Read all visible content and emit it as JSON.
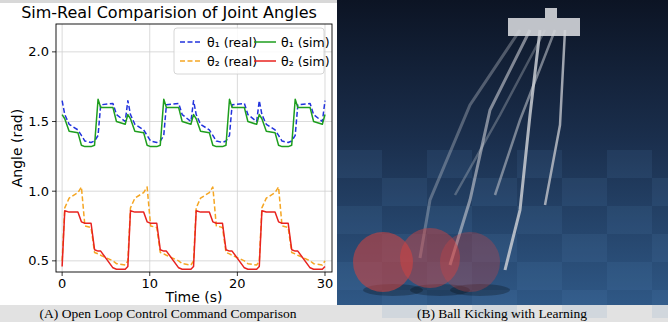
{
  "chart_data": {
    "type": "line",
    "title": "Sim-Real Comparision of Joint Angles",
    "x_label": "Time (s)",
    "y_label": "Angle (rad)",
    "x": [
      0,
      0.3,
      0.8,
      1.8,
      2.2,
      2.6,
      3.3,
      3.7,
      4.1,
      4.4,
      5.8,
      6.2,
      7.2,
      7.5,
      7.8,
      8.3,
      9.3,
      9.7,
      10.1,
      10.8,
      11.2,
      11.6,
      11.9,
      13.3,
      13.7,
      14.7,
      15,
      15.3,
      15.8,
      16.8,
      17.2,
      17.6,
      18.3,
      18.7,
      19.1,
      19.4,
      20.8,
      21.2,
      22.2,
      22.5,
      22.8,
      23.3,
      24.3,
      24.7,
      25.1,
      25.8,
      26.2,
      26.6,
      26.9,
      28.3,
      28.7,
      29.7,
      30
    ],
    "series": [
      {
        "name": "θ₁ (real)",
        "color": "#2233dd",
        "line_style": "dashed",
        "values": [
          1.65,
          1.55,
          1.48,
          1.44,
          1.4,
          1.36,
          1.35,
          1.36,
          1.4,
          1.62,
          1.63,
          1.55,
          1.5,
          1.65,
          1.55,
          1.48,
          1.44,
          1.4,
          1.36,
          1.35,
          1.36,
          1.4,
          1.62,
          1.63,
          1.55,
          1.5,
          1.65,
          1.55,
          1.48,
          1.44,
          1.4,
          1.36,
          1.35,
          1.36,
          1.4,
          1.62,
          1.63,
          1.55,
          1.5,
          1.65,
          1.55,
          1.48,
          1.44,
          1.4,
          1.36,
          1.35,
          1.36,
          1.4,
          1.62,
          1.63,
          1.55,
          1.5,
          1.65
        ]
      },
      {
        "name": "θ₂ (real)",
        "color": "#f5a623",
        "line_style": "dashed",
        "values": [
          0.5,
          0.88,
          0.95,
          0.99,
          1.03,
          0.75,
          0.74,
          0.56,
          0.55,
          0.54,
          0.5,
          0.48,
          0.47,
          0.5,
          0.88,
          0.95,
          0.99,
          1.03,
          0.75,
          0.74,
          0.56,
          0.55,
          0.54,
          0.5,
          0.48,
          0.47,
          0.5,
          0.88,
          0.95,
          0.99,
          1.03,
          0.75,
          0.74,
          0.56,
          0.55,
          0.54,
          0.5,
          0.48,
          0.47,
          0.5,
          0.88,
          0.95,
          0.99,
          1.03,
          0.75,
          0.74,
          0.56,
          0.55,
          0.54,
          0.5,
          0.48,
          0.47,
          0.5
        ]
      },
      {
        "name": "θ₁ (sim)",
        "color": "#1e9e1e",
        "line_style": "solid",
        "values": [
          1.55,
          1.52,
          1.43,
          1.42,
          1.33,
          1.32,
          1.32,
          1.33,
          1.66,
          1.6,
          1.6,
          1.5,
          1.48,
          1.55,
          1.52,
          1.43,
          1.42,
          1.33,
          1.32,
          1.32,
          1.33,
          1.66,
          1.6,
          1.6,
          1.5,
          1.48,
          1.55,
          1.52,
          1.43,
          1.42,
          1.33,
          1.32,
          1.32,
          1.33,
          1.66,
          1.6,
          1.6,
          1.5,
          1.48,
          1.55,
          1.52,
          1.43,
          1.42,
          1.33,
          1.32,
          1.32,
          1.33,
          1.66,
          1.6,
          1.6,
          1.5,
          1.48,
          1.55
        ]
      },
      {
        "name": "θ₂ (sim)",
        "color": "#e8231f",
        "line_style": "solid",
        "values": [
          0.46,
          0.86,
          0.85,
          0.85,
          0.78,
          0.77,
          0.77,
          0.58,
          0.57,
          0.57,
          0.45,
          0.44,
          0.44,
          0.46,
          0.86,
          0.85,
          0.85,
          0.78,
          0.77,
          0.77,
          0.58,
          0.57,
          0.57,
          0.45,
          0.44,
          0.44,
          0.46,
          0.86,
          0.85,
          0.85,
          0.78,
          0.77,
          0.77,
          0.58,
          0.57,
          0.57,
          0.45,
          0.44,
          0.44,
          0.46,
          0.86,
          0.85,
          0.85,
          0.78,
          0.77,
          0.77,
          0.58,
          0.57,
          0.57,
          0.45,
          0.44,
          0.44,
          0.46
        ]
      }
    ],
    "xlim": [
      -0.7,
      30.8
    ],
    "ylim": [
      0.42,
      2.2
    ],
    "xticks": [
      0,
      10,
      20,
      30
    ],
    "yticks": [
      0.5,
      {
        "value": 1,
        "label": "1.0"
      },
      1.5,
      {
        "value": 2,
        "label": "2.0"
      }
    ],
    "grid": true,
    "legend": "upper right"
  },
  "captions": [
    "(A) Open Loop Control Command Comparison",
    "(B) Ball Kicking with Learning"
  ]
}
